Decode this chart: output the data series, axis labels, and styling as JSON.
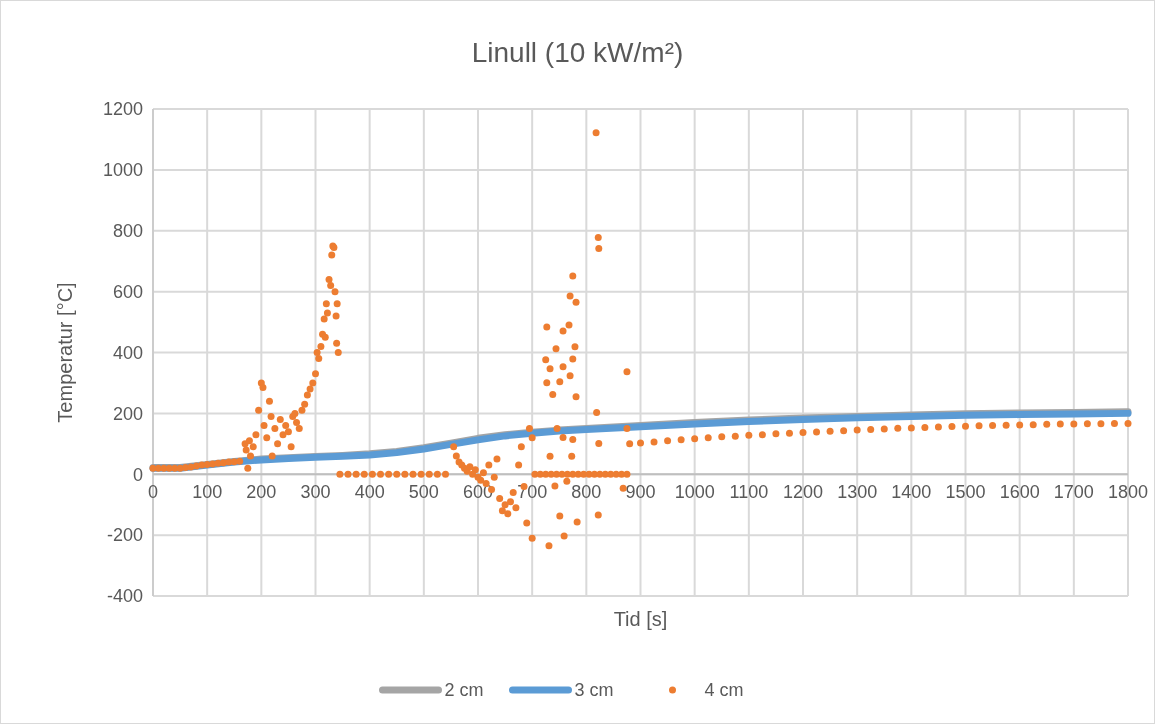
{
  "chart_data": {
    "type": "line",
    "title": "Linull (10 kW/m²)",
    "xlabel": "Tid [s]",
    "ylabel": "Temperatur [°C]",
    "xlim": [
      0,
      1800
    ],
    "xticks": [
      0,
      100,
      200,
      300,
      400,
      500,
      600,
      700,
      800,
      900,
      1000,
      1100,
      1200,
      1300,
      1400,
      1500,
      1600,
      1700,
      1800
    ],
    "ylim": [
      -400,
      1200
    ],
    "yticks": [
      -400,
      -200,
      0,
      200,
      400,
      600,
      800,
      1000,
      1200
    ],
    "grid": true,
    "legend": "bottom",
    "series": [
      {
        "name": "2 cm",
        "color": "#a5a5a5",
        "x": [
          0,
          50,
          100,
          150,
          200,
          250,
          300,
          350,
          400,
          450,
          500,
          550,
          600,
          650,
          700,
          750,
          800,
          900,
          1000,
          1100,
          1200,
          1300,
          1400,
          1500,
          1600,
          1700,
          1800
        ],
        "values": [
          22,
          22,
          32,
          42,
          50,
          54,
          58,
          62,
          67,
          75,
          87,
          102,
          118,
          130,
          138,
          145,
          150,
          160,
          170,
          178,
          185,
          190,
          195,
          199,
          201,
          203,
          205
        ]
      },
      {
        "name": "3 cm",
        "color": "#5b9bd5",
        "x": [
          0,
          50,
          100,
          150,
          200,
          250,
          300,
          350,
          400,
          450,
          500,
          550,
          600,
          650,
          700,
          750,
          800,
          900,
          1000,
          1100,
          1200,
          1300,
          1400,
          1500,
          1600,
          1700,
          1800
        ],
        "values": [
          20,
          20,
          30,
          40,
          47,
          52,
          56,
          59,
          63,
          71,
          83,
          98,
          113,
          126,
          135,
          142,
          147,
          156,
          165,
          173,
          180,
          186,
          190,
          194,
          196,
          198,
          200
        ]
      },
      {
        "name": "4 cm",
        "type": "scatter",
        "marker": "circle",
        "color": "#ed7d31",
        "x": [
          0,
          10,
          20,
          30,
          40,
          50,
          60,
          70,
          80,
          90,
          100,
          110,
          120,
          130,
          140,
          150,
          160,
          170,
          172,
          175,
          178,
          180,
          185,
          190,
          195,
          200,
          203,
          205,
          210,
          215,
          218,
          220,
          225,
          230,
          235,
          240,
          245,
          250,
          255,
          258,
          262,
          265,
          270,
          275,
          280,
          285,
          290,
          295,
          300,
          303,
          306,
          310,
          313,
          316,
          318,
          320,
          322,
          325,
          328,
          330,
          332,
          334,
          336,
          338,
          339,
          340,
          342,
          345,
          360,
          375,
          390,
          405,
          420,
          435,
          450,
          465,
          480,
          495,
          510,
          525,
          540,
          555,
          560,
          565,
          570,
          575,
          580,
          585,
          590,
          595,
          600,
          605,
          610,
          615,
          620,
          625,
          630,
          635,
          640,
          645,
          650,
          655,
          660,
          665,
          670,
          675,
          680,
          685,
          690,
          695,
          700,
          700,
          705,
          715,
          725,
          735,
          745,
          755,
          765,
          775,
          785,
          795,
          805,
          815,
          825,
          835,
          845,
          855,
          865,
          875,
          818,
          822,
          823,
          775,
          770,
          781,
          727,
          757,
          768,
          744,
          779,
          725,
          775,
          733,
          757,
          770,
          727,
          751,
          781,
          738,
          875,
          819,
          875,
          823,
          775,
          757,
          746,
          733,
          773,
          764,
          742,
          868,
          751,
          783,
          759,
          731,
          822,
          880,
          900,
          925,
          950,
          975,
          1000,
          1025,
          1050,
          1075,
          1100,
          1125,
          1150,
          1175,
          1200,
          1225,
          1250,
          1275,
          1300,
          1325,
          1350,
          1375,
          1400,
          1425,
          1450,
          1475,
          1500,
          1525,
          1550,
          1575,
          1600,
          1625,
          1650,
          1675,
          1700,
          1725,
          1750,
          1775,
          1800
        ],
        "values": [
          20,
          20,
          20,
          20,
          20,
          20,
          22,
          24,
          27,
          30,
          32,
          34,
          36,
          38,
          40,
          41,
          43,
          100,
          80,
          20,
          110,
          60,
          90,
          130,
          210,
          300,
          285,
          160,
          120,
          240,
          190,
          60,
          150,
          100,
          180,
          130,
          160,
          140,
          90,
          190,
          200,
          170,
          150,
          210,
          230,
          260,
          280,
          300,
          330,
          400,
          380,
          420,
          460,
          510,
          450,
          560,
          530,
          640,
          620,
          720,
          750,
          745,
          600,
          520,
          430,
          560,
          400,
          0,
          0,
          0,
          0,
          0,
          0,
          0,
          0,
          0,
          0,
          0,
          0,
          0,
          0,
          90,
          60,
          40,
          30,
          20,
          10,
          25,
          0,
          15,
          -10,
          -20,
          5,
          -30,
          30,
          -50,
          -10,
          50,
          -80,
          -120,
          -100,
          -130,
          -90,
          -60,
          -110,
          30,
          90,
          -40,
          -160,
          150,
          -210,
          120,
          0,
          0,
          0,
          0,
          0,
          0,
          0,
          0,
          0,
          0,
          0,
          0,
          0,
          0,
          0,
          0,
          0,
          0,
          1122,
          778,
          742,
          651,
          586,
          565,
          484,
          471,
          490,
          412,
          419,
          376,
          379,
          347,
          353,
          324,
          301,
          304,
          255,
          262,
          337,
          203,
          150,
          101,
          114,
          121,
          150,
          59,
          59,
          -23,
          -39,
          -46,
          -137,
          -157,
          -203,
          -235,
          -134,
          100,
          103,
          106,
          110,
          113,
          117,
          120,
          123,
          125,
          128,
          130,
          133,
          135,
          137,
          139,
          141,
          143,
          145,
          147,
          149,
          151,
          152,
          154,
          155,
          157,
          158,
          159,
          160,
          161,
          162,
          163,
          164,
          165,
          165,
          166,
          166,
          167,
          167
        ]
      }
    ]
  }
}
